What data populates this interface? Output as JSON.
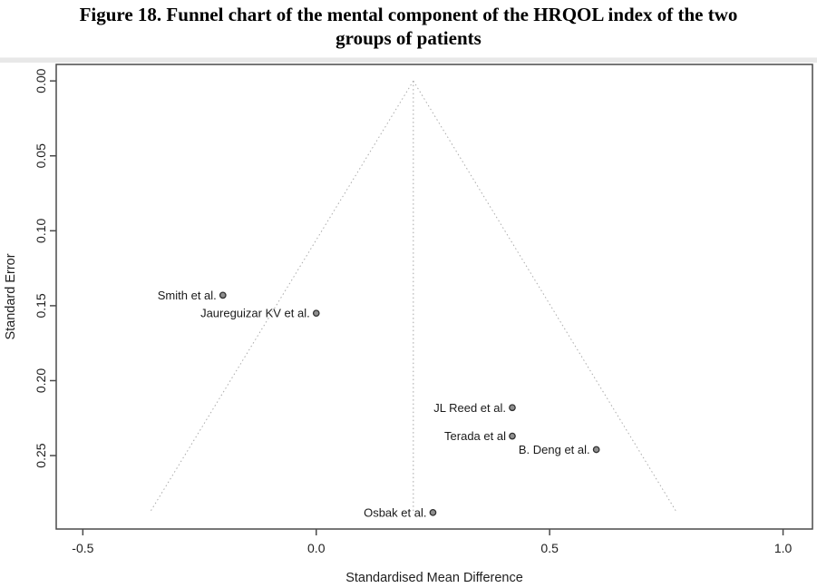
{
  "page": {
    "title_lines": [
      "Figure 18. Funnel chart of the mental component of the HRQOL index of the two",
      "groups of patients"
    ]
  },
  "chart_data": {
    "type": "scatter",
    "subtype": "funnel-plot",
    "title": "Figure 18. Funnel chart of the mental component of the HRQOL index of the two groups of patients",
    "xlabel": "Standardised Mean Difference",
    "ylabel": "Standard Error",
    "x_ticks": [
      -0.5,
      0.0,
      0.5,
      1.0
    ],
    "x_tick_labels": [
      "-0.5",
      "0.0",
      "0.5",
      "1.0"
    ],
    "y_ticks": [
      0.0,
      0.05,
      0.1,
      0.15,
      0.2,
      0.25
    ],
    "y_tick_labels": [
      "0.00",
      "0.05",
      "0.10",
      "0.15",
      "0.20",
      "0.25"
    ],
    "xlim": [
      -0.557,
      1.063
    ],
    "ylim": [
      -0.011,
      0.299
    ],
    "y_axis_inverted": true,
    "grid": false,
    "legend": "none",
    "pooled_estimate_smd": 0.208,
    "funnel_z": 1.96,
    "funnel_max_se": 0.288,
    "points": [
      {
        "label": "Smith et al.",
        "smd": -0.2,
        "se": 0.143
      },
      {
        "label": "Jaureguizar KV et al.",
        "smd": 0.0,
        "se": 0.155
      },
      {
        "label": "JL Reed et al.",
        "smd": 0.42,
        "se": 0.218
      },
      {
        "label": "Terada et al",
        "smd": 0.42,
        "se": 0.237
      },
      {
        "label": "B. Deng et al.",
        "smd": 0.6,
        "se": 0.246
      },
      {
        "label": "Osbak et al.",
        "smd": 0.25,
        "se": 0.288
      }
    ],
    "colors": {
      "plot_border": "#4a4a4a",
      "tick": "#4a4a4a",
      "tick_label": "#1f1f1f",
      "axis_label": "#1f1f1f",
      "funnel_line": "#ababab",
      "estimate_line": "#a3a3a3",
      "marker_fill": "#8f8f8f",
      "marker_stroke": "#303030",
      "point_label": "#1a1a1a",
      "background": "#ffffff"
    }
  }
}
